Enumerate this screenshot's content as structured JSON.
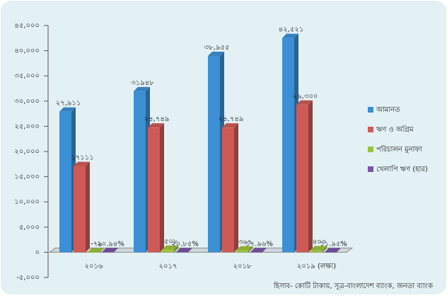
{
  "chart_data": {
    "type": "bar3d",
    "categories": [
      "২০১৬",
      "২০১৭",
      "২০১৮",
      "২০১৯ (লক্ষ্য)"
    ],
    "series": [
      {
        "name": "আমানত",
        "color": "#3b8fd4",
        "values": [
          27911,
          31948,
          38955,
          42521
        ],
        "value_labels": [
          "২৭,৯১১",
          "৩১৯৪৮",
          "৩৮,৯৫৫",
          "৪২,৫২১"
        ]
      },
      {
        "name": "ঋণ ও অগ্রিম",
        "color": "#cf5a55",
        "values": [
          17111,
          24749,
          24749,
          29300
        ],
        "value_labels": [
          "১৭১১১",
          "২৪,৭৪৯",
          "২৪,৭৪৯",
          "২৯,৩০০"
        ]
      },
      {
        "name": "পরিচালন মুনাফা",
        "color": "#9cc23c",
        "values": [
          -79,
          508,
          367,
          400
        ],
        "value_labels": [
          "-৭৯",
          "৫০৮",
          "৩৬৭",
          "৪০০"
        ]
      },
      {
        "name": "খেলাপি ঋণ (হার)",
        "color": "#7a55a8",
        "values": [
          20.94,
          20.85,
          17.96,
          11.95
        ],
        "value_labels": [
          "২০.৯৪%",
          "২০.৮৫%",
          "১৭.৯৬%",
          "১১.৯৫%"
        ]
      }
    ],
    "ylim": [
      -5000,
      45000
    ],
    "yticks": [
      {
        "value": -5000,
        "label": "-৫,০০০"
      },
      {
        "value": 0,
        "label": "০"
      },
      {
        "value": 5000,
        "label": "৫,০০০"
      },
      {
        "value": 10000,
        "label": "১০,০০০"
      },
      {
        "value": 15000,
        "label": "১৫,০০০"
      },
      {
        "value": 20000,
        "label": "২০,০০০"
      },
      {
        "value": 25000,
        "label": "২৫,০০০"
      },
      {
        "value": 30000,
        "label": "৩০,০০০"
      },
      {
        "value": 35000,
        "label": "৩৫,০০০"
      },
      {
        "value": 40000,
        "label": "৪০,০০০"
      },
      {
        "value": 45000,
        "label": "৪৫,০০০"
      }
    ],
    "grid": false,
    "legend": "right",
    "source": "হিসাব- কোটি টাকায়, সূত্র-বাংলাদেশ ব্যাংক, জনতা ব্যাংক"
  }
}
